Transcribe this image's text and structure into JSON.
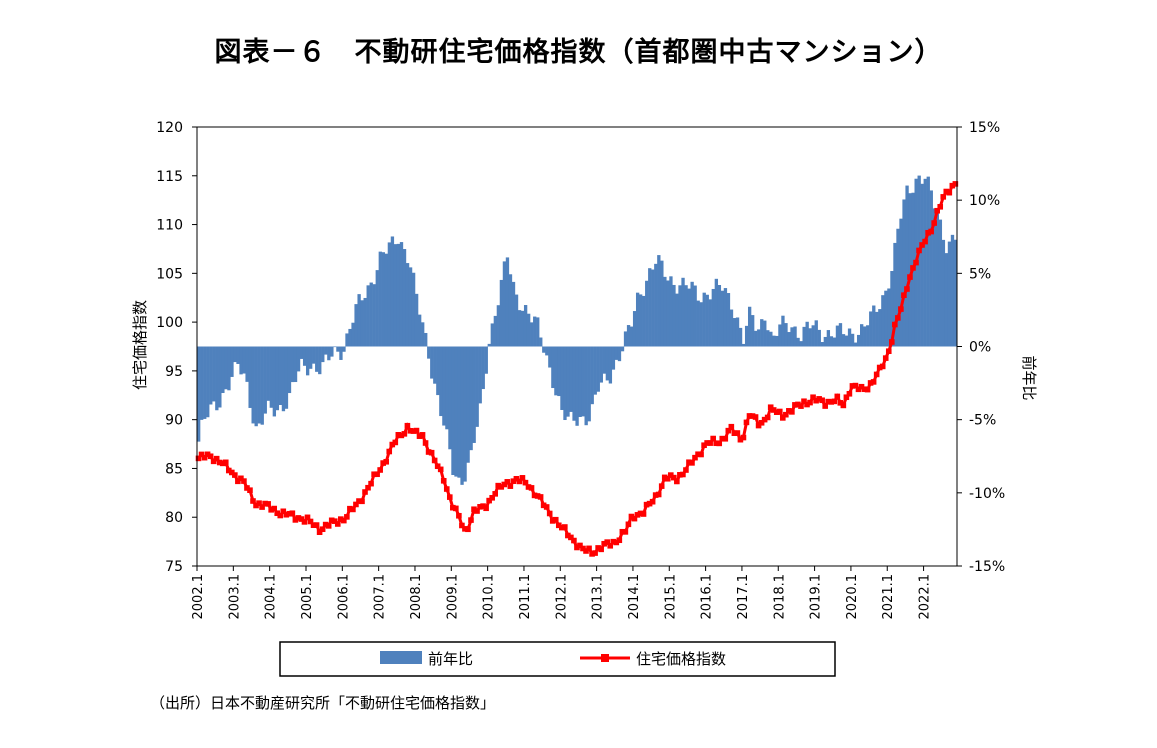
{
  "title": "図表－６　不動研住宅価格指数（首都圏中古マンション）",
  "source": "（出所）日本不動産研究所「不動研住宅価格指数」",
  "chart_data": {
    "type": "bar+line",
    "left_axis": {
      "label": "住宅価格指数",
      "min": 75,
      "max": 120,
      "ticks": [
        "75",
        "80",
        "85",
        "90",
        "95",
        "100",
        "105",
        "110",
        "115",
        "120"
      ]
    },
    "right_axis": {
      "label": "前年比",
      "min": -15,
      "max": 15,
      "ticks": [
        "-15%",
        "-10%",
        "-5%",
        "0%",
        "5%",
        "10%",
        "15%"
      ]
    },
    "x_ticks": [
      "2002.1",
      "2003.1",
      "2004.1",
      "2005.1",
      "2006.1",
      "2007.1",
      "2008.1",
      "2009.1",
      "2010.1",
      "2011.1",
      "2012.1",
      "2013.1",
      "2014.1",
      "2015.1",
      "2016.1",
      "2017.1",
      "2018.1",
      "2019.1",
      "2020.1",
      "2021.1",
      "2022.1"
    ],
    "legend": {
      "bar_label": "前年比",
      "line_label": "住宅価格指数",
      "position": "bottom"
    },
    "colors": {
      "bar": "#4f81bd",
      "line": "#ff0000"
    },
    "yoy_points": [
      {
        "t": 2002.0,
        "v": -6.5
      },
      {
        "t": 2002.1,
        "v": -5.5
      },
      {
        "t": 2002.3,
        "v": -4.5
      },
      {
        "t": 2002.6,
        "v": -3.5
      },
      {
        "t": 2002.9,
        "v": -2.3
      },
      {
        "t": 2003.1,
        "v": -1.4
      },
      {
        "t": 2003.3,
        "v": -2.2
      },
      {
        "t": 2003.6,
        "v": -5.8
      },
      {
        "t": 2003.9,
        "v": -4.5
      },
      {
        "t": 2004.2,
        "v": -4.2
      },
      {
        "t": 2004.5,
        "v": -3.5
      },
      {
        "t": 2004.8,
        "v": -1.5
      },
      {
        "t": 2005.1,
        "v": -1.2
      },
      {
        "t": 2005.4,
        "v": -1.6
      },
      {
        "t": 2005.7,
        "v": -0.5
      },
      {
        "t": 2006.0,
        "v": 0.0
      },
      {
        "t": 2006.2,
        "v": 1.5
      },
      {
        "t": 2006.4,
        "v": 2.8
      },
      {
        "t": 2006.7,
        "v": 4.2
      },
      {
        "t": 2007.0,
        "v": 6.0
      },
      {
        "t": 2007.3,
        "v": 6.8
      },
      {
        "t": 2007.5,
        "v": 7.6
      },
      {
        "t": 2007.8,
        "v": 6.0
      },
      {
        "t": 2008.0,
        "v": 3.2
      },
      {
        "t": 2008.3,
        "v": 0.0
      },
      {
        "t": 2008.5,
        "v": -2.5
      },
      {
        "t": 2008.8,
        "v": -6.0
      },
      {
        "t": 2009.0,
        "v": -8.5
      },
      {
        "t": 2009.2,
        "v": -9.3
      },
      {
        "t": 2009.5,
        "v": -7.5
      },
      {
        "t": 2009.8,
        "v": -4.0
      },
      {
        "t": 2010.0,
        "v": 0.5
      },
      {
        "t": 2010.3,
        "v": 4.0
      },
      {
        "t": 2010.5,
        "v": 6.0
      },
      {
        "t": 2010.7,
        "v": 3.5
      },
      {
        "t": 2011.0,
        "v": 2.7
      },
      {
        "t": 2011.3,
        "v": 1.5
      },
      {
        "t": 2011.5,
        "v": -0.2
      },
      {
        "t": 2011.8,
        "v": -2.5
      },
      {
        "t": 2012.0,
        "v": -4.5
      },
      {
        "t": 2012.2,
        "v": -5.3
      },
      {
        "t": 2012.5,
        "v": -4.8
      },
      {
        "t": 2012.8,
        "v": -4.7
      },
      {
        "t": 2013.0,
        "v": -3.0
      },
      {
        "t": 2013.3,
        "v": -2.0
      },
      {
        "t": 2013.6,
        "v": -0.5
      },
      {
        "t": 2013.9,
        "v": 1.3
      },
      {
        "t": 2014.1,
        "v": 3.5
      },
      {
        "t": 2014.4,
        "v": 5.0
      },
      {
        "t": 2014.6,
        "v": 5.8
      },
      {
        "t": 2014.9,
        "v": 4.8
      },
      {
        "t": 2015.2,
        "v": 4.3
      },
      {
        "t": 2015.5,
        "v": 4.0
      },
      {
        "t": 2015.8,
        "v": 3.5
      },
      {
        "t": 2016.1,
        "v": 3.8
      },
      {
        "t": 2016.4,
        "v": 4.0
      },
      {
        "t": 2016.7,
        "v": 3.0
      },
      {
        "t": 2017.0,
        "v": 0.5
      },
      {
        "t": 2017.2,
        "v": 2.2
      },
      {
        "t": 2017.4,
        "v": 1.0
      },
      {
        "t": 2017.6,
        "v": 2.5
      },
      {
        "t": 2017.8,
        "v": 0.2
      },
      {
        "t": 2018.0,
        "v": 1.3
      },
      {
        "t": 2018.3,
        "v": 1.6
      },
      {
        "t": 2018.6,
        "v": 0.8
      },
      {
        "t": 2018.9,
        "v": 1.4
      },
      {
        "t": 2019.2,
        "v": 1.0
      },
      {
        "t": 2019.5,
        "v": 0.9
      },
      {
        "t": 2019.8,
        "v": 0.9
      },
      {
        "t": 2020.0,
        "v": 1.0
      },
      {
        "t": 2020.3,
        "v": 1.2
      },
      {
        "t": 2020.6,
        "v": 2.2
      },
      {
        "t": 2020.9,
        "v": 3.8
      },
      {
        "t": 2021.1,
        "v": 5.5
      },
      {
        "t": 2021.3,
        "v": 8.5
      },
      {
        "t": 2021.5,
        "v": 10.5
      },
      {
        "t": 2021.8,
        "v": 11.7
      },
      {
        "t": 2022.0,
        "v": 11.5
      },
      {
        "t": 2022.2,
        "v": 10.0
      },
      {
        "t": 2022.4,
        "v": 8.5
      },
      {
        "t": 2022.6,
        "v": 7.0
      },
      {
        "t": 2022.8,
        "v": 7.5
      }
    ],
    "index_points": [
      {
        "t": 2002.0,
        "v": 86.0
      },
      {
        "t": 2002.4,
        "v": 86.3
      },
      {
        "t": 2002.7,
        "v": 85.5
      },
      {
        "t": 2003.0,
        "v": 84.5
      },
      {
        "t": 2003.3,
        "v": 83.5
      },
      {
        "t": 2003.6,
        "v": 81.5
      },
      {
        "t": 2004.0,
        "v": 81.0
      },
      {
        "t": 2004.4,
        "v": 80.3
      },
      {
        "t": 2004.8,
        "v": 80.0
      },
      {
        "t": 2005.1,
        "v": 79.5
      },
      {
        "t": 2005.4,
        "v": 78.8
      },
      {
        "t": 2005.8,
        "v": 79.5
      },
      {
        "t": 2006.1,
        "v": 80.0
      },
      {
        "t": 2006.4,
        "v": 81.3
      },
      {
        "t": 2006.8,
        "v": 83.5
      },
      {
        "t": 2007.2,
        "v": 86.0
      },
      {
        "t": 2007.5,
        "v": 88.0
      },
      {
        "t": 2007.8,
        "v": 89.3
      },
      {
        "t": 2008.0,
        "v": 88.5
      },
      {
        "t": 2008.2,
        "v": 88.5
      },
      {
        "t": 2008.5,
        "v": 86.0
      },
      {
        "t": 2008.8,
        "v": 84.0
      },
      {
        "t": 2009.0,
        "v": 81.5
      },
      {
        "t": 2009.2,
        "v": 80.0
      },
      {
        "t": 2009.4,
        "v": 78.5
      },
      {
        "t": 2009.6,
        "v": 80.5
      },
      {
        "t": 2009.9,
        "v": 81.0
      },
      {
        "t": 2010.2,
        "v": 82.5
      },
      {
        "t": 2010.5,
        "v": 83.5
      },
      {
        "t": 2010.8,
        "v": 83.8
      },
      {
        "t": 2011.1,
        "v": 83.5
      },
      {
        "t": 2011.4,
        "v": 82.0
      },
      {
        "t": 2011.7,
        "v": 80.5
      },
      {
        "t": 2012.0,
        "v": 79.0
      },
      {
        "t": 2012.3,
        "v": 78.0
      },
      {
        "t": 2012.6,
        "v": 76.6
      },
      {
        "t": 2012.9,
        "v": 76.5
      },
      {
        "t": 2013.2,
        "v": 77.0
      },
      {
        "t": 2013.5,
        "v": 77.5
      },
      {
        "t": 2013.8,
        "v": 78.5
      },
      {
        "t": 2014.0,
        "v": 80.2
      },
      {
        "t": 2014.3,
        "v": 80.5
      },
      {
        "t": 2014.6,
        "v": 82.0
      },
      {
        "t": 2014.9,
        "v": 84.0
      },
      {
        "t": 2015.2,
        "v": 84.0
      },
      {
        "t": 2015.5,
        "v": 85.0
      },
      {
        "t": 2015.8,
        "v": 86.5
      },
      {
        "t": 2016.0,
        "v": 87.5
      },
      {
        "t": 2016.4,
        "v": 87.8
      },
      {
        "t": 2016.7,
        "v": 89.0
      },
      {
        "t": 2017.0,
        "v": 88.0
      },
      {
        "t": 2017.2,
        "v": 90.5
      },
      {
        "t": 2017.5,
        "v": 89.5
      },
      {
        "t": 2017.8,
        "v": 91.0
      },
      {
        "t": 2018.1,
        "v": 90.5
      },
      {
        "t": 2018.4,
        "v": 91.0
      },
      {
        "t": 2018.7,
        "v": 91.8
      },
      {
        "t": 2019.0,
        "v": 92.0
      },
      {
        "t": 2019.3,
        "v": 91.8
      },
      {
        "t": 2019.6,
        "v": 92.0
      },
      {
        "t": 2019.8,
        "v": 91.5
      },
      {
        "t": 2020.0,
        "v": 93.5
      },
      {
        "t": 2020.3,
        "v": 93.0
      },
      {
        "t": 2020.5,
        "v": 93.5
      },
      {
        "t": 2020.8,
        "v": 95.0
      },
      {
        "t": 2021.0,
        "v": 96.5
      },
      {
        "t": 2021.2,
        "v": 99.5
      },
      {
        "t": 2021.4,
        "v": 101.5
      },
      {
        "t": 2021.6,
        "v": 104.5
      },
      {
        "t": 2021.8,
        "v": 106.5
      },
      {
        "t": 2022.0,
        "v": 108.0
      },
      {
        "t": 2022.2,
        "v": 109.5
      },
      {
        "t": 2022.4,
        "v": 111.5
      },
      {
        "t": 2022.6,
        "v": 113.0
      },
      {
        "t": 2022.8,
        "v": 114.0
      },
      {
        "t": 2022.9,
        "v": 114.5
      }
    ]
  }
}
